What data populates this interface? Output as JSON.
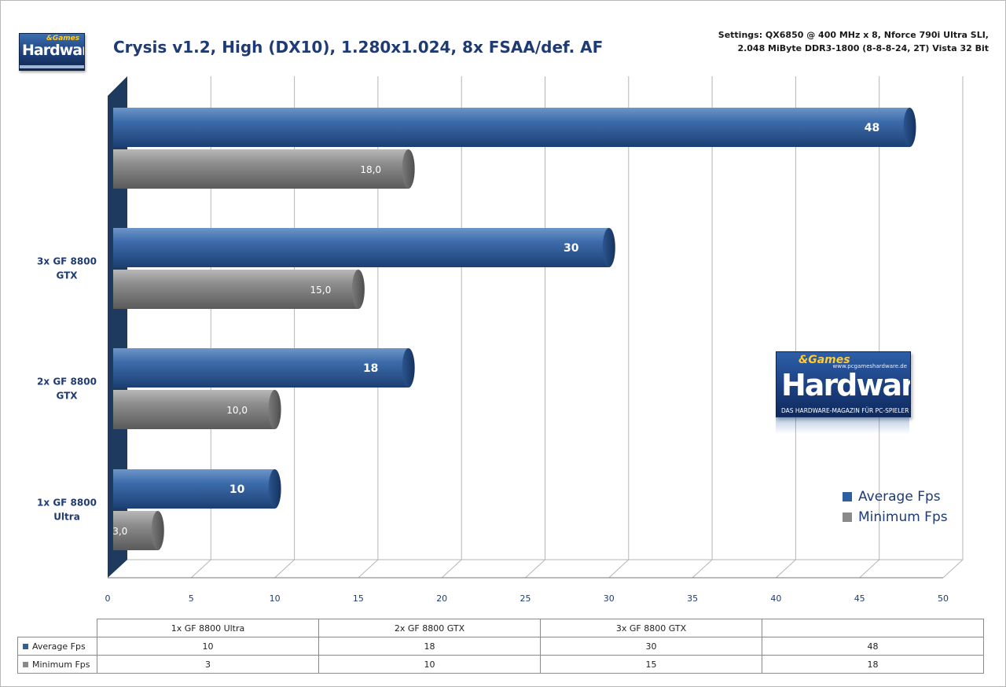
{
  "header": {
    "title": "Crysis v1.2, High (DX10), 1.280x1.024, 8x FSAA/def. AF",
    "settings_line1": "Settings: QX6850 @ 400 MHz x 8, Nforce 790i Ultra SLI,",
    "settings_line2": "2.048 MiByte DDR3-1800 (8-8-8-24, 2T) Vista 32 Bit"
  },
  "logo": {
    "games": "&Games",
    "word": "Hardware",
    "url": "www.pcgameshardware.de",
    "tagline": "DAS HARDWARE-MAGAZIN FÜR PC-SPIELER"
  },
  "colors": {
    "average": "#2e5f9e",
    "minimum": "#8a8a8a",
    "axis_wall": "#1e3a5f",
    "text_blue": "#1f3b73"
  },
  "chart_data": {
    "type": "bar",
    "orientation": "horizontal",
    "categories": [
      "",
      "3x GF 8800 GTX",
      "2x GF 8800 GTX",
      "1x GF 8800 Ultra"
    ],
    "series": [
      {
        "name": "Average Fps",
        "values": [
          48,
          30,
          18,
          10
        ],
        "labels": [
          "48",
          "30",
          "18",
          "10"
        ]
      },
      {
        "name": "Minimum Fps",
        "values": [
          18,
          15,
          10,
          3
        ],
        "labels": [
          "18,0",
          "15,0",
          "10,0",
          "3,0"
        ]
      }
    ],
    "xlim": [
      0,
      50
    ],
    "xticks": [
      0,
      5,
      10,
      15,
      20,
      25,
      30,
      35,
      40,
      45,
      50
    ],
    "grid": true,
    "legend_position": "bottom-right"
  },
  "data_table": {
    "columns": [
      "1x GF 8800 Ultra",
      "2x GF 8800 GTX",
      "3x GF 8800 GTX",
      ""
    ],
    "rows": [
      {
        "label": "Average Fps",
        "values": [
          "10",
          "18",
          "30",
          "48"
        ]
      },
      {
        "label": "Minimum Fps",
        "values": [
          "3",
          "10",
          "15",
          "18"
        ]
      }
    ]
  }
}
